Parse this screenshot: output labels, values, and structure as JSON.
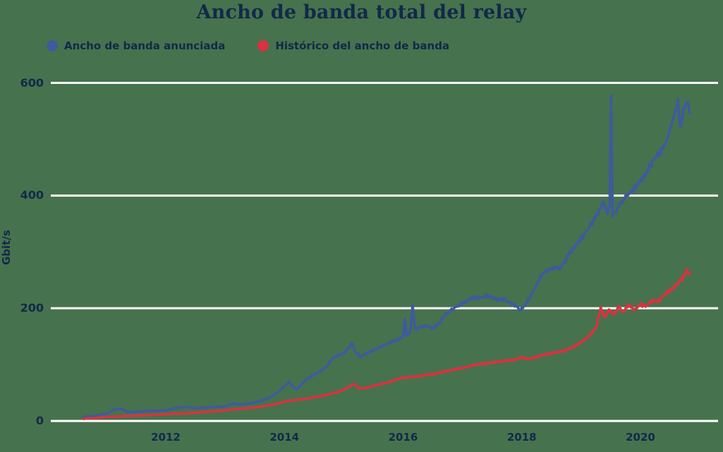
{
  "title": "Ancho de banda total del relay",
  "colors": {
    "background": "#47724E",
    "grid": "#FFFFFF",
    "text": "#12294A",
    "advertised": "#3E5B9C",
    "history": "#D63440"
  },
  "legend": {
    "items": [
      {
        "label": "Ancho de banda anunciada",
        "color": "#3E5B9C"
      },
      {
        "label": "Histórico del ancho de banda",
        "color": "#D63440"
      }
    ]
  },
  "y_axis": {
    "label": "Gbit/s",
    "ticks": [
      "0",
      "200",
      "400",
      "600"
    ],
    "tick_values": [
      0,
      200,
      400,
      600
    ]
  },
  "x_axis": {
    "ticks": [
      "2012",
      "2014",
      "2016",
      "2018",
      "2020"
    ],
    "tick_values": [
      2012,
      2014,
      2016,
      2018,
      2020
    ]
  },
  "chart_data": {
    "type": "line",
    "title": "Ancho de banda total del relay",
    "xlabel": "",
    "ylabel": "Gbit/s",
    "x_range": [
      2010.62,
      2020.85
    ],
    "ylim": [
      0,
      600
    ],
    "grid": "horizontal",
    "legend_position": "top-left",
    "series": [
      {
        "name": "Ancho de banda anunciada",
        "color": "#3E5B9C",
        "points": [
          [
            2010.62,
            7
          ],
          [
            2010.8,
            9
          ],
          [
            2011.0,
            13
          ],
          [
            2011.15,
            21
          ],
          [
            2011.25,
            22
          ],
          [
            2011.35,
            16
          ],
          [
            2011.5,
            16
          ],
          [
            2011.7,
            18
          ],
          [
            2011.85,
            18
          ],
          [
            2012.0,
            19
          ],
          [
            2012.2,
            23
          ],
          [
            2012.35,
            25
          ],
          [
            2012.5,
            23
          ],
          [
            2012.7,
            24
          ],
          [
            2012.85,
            25
          ],
          [
            2013.0,
            26
          ],
          [
            2013.15,
            31
          ],
          [
            2013.25,
            29
          ],
          [
            2013.4,
            31
          ],
          [
            2013.5,
            33
          ],
          [
            2013.65,
            37
          ],
          [
            2013.8,
            44
          ],
          [
            2013.9,
            52
          ],
          [
            2014.0,
            62
          ],
          [
            2014.07,
            70
          ],
          [
            2014.15,
            60
          ],
          [
            2014.22,
            57
          ],
          [
            2014.35,
            72
          ],
          [
            2014.45,
            79
          ],
          [
            2014.6,
            88
          ],
          [
            2014.7,
            95
          ],
          [
            2014.8,
            110
          ],
          [
            2014.9,
            116
          ],
          [
            2015.0,
            120
          ],
          [
            2015.1,
            132
          ],
          [
            2015.14,
            138
          ],
          [
            2015.2,
            122
          ],
          [
            2015.28,
            114
          ],
          [
            2015.35,
            118
          ],
          [
            2015.45,
            123
          ],
          [
            2015.55,
            128
          ],
          [
            2015.65,
            133
          ],
          [
            2015.75,
            138
          ],
          [
            2015.85,
            142
          ],
          [
            2015.95,
            146
          ],
          [
            2016.0,
            150
          ],
          [
            2016.03,
            181
          ],
          [
            2016.06,
            152
          ],
          [
            2016.12,
            158
          ],
          [
            2016.16,
            206
          ],
          [
            2016.2,
            162
          ],
          [
            2016.3,
            167
          ],
          [
            2016.4,
            169
          ],
          [
            2016.5,
            164
          ],
          [
            2016.6,
            172
          ],
          [
            2016.7,
            188
          ],
          [
            2016.8,
            196
          ],
          [
            2016.9,
            203
          ],
          [
            2017.0,
            209
          ],
          [
            2017.1,
            214
          ],
          [
            2017.2,
            220
          ],
          [
            2017.3,
            218
          ],
          [
            2017.4,
            222
          ],
          [
            2017.5,
            219
          ],
          [
            2017.6,
            215
          ],
          [
            2017.7,
            217
          ],
          [
            2017.8,
            210
          ],
          [
            2017.9,
            204
          ],
          [
            2017.97,
            196
          ],
          [
            2018.05,
            205
          ],
          [
            2018.15,
            222
          ],
          [
            2018.25,
            242
          ],
          [
            2018.35,
            262
          ],
          [
            2018.45,
            268
          ],
          [
            2018.55,
            272
          ],
          [
            2018.62,
            270
          ],
          [
            2018.7,
            278
          ],
          [
            2018.8,
            298
          ],
          [
            2018.9,
            310
          ],
          [
            2019.0,
            324
          ],
          [
            2019.1,
            338
          ],
          [
            2019.2,
            355
          ],
          [
            2019.3,
            372
          ],
          [
            2019.37,
            386
          ],
          [
            2019.44,
            368
          ],
          [
            2019.48,
            378
          ],
          [
            2019.505,
            575
          ],
          [
            2019.53,
            362
          ],
          [
            2019.6,
            372
          ],
          [
            2019.67,
            386
          ],
          [
            2019.75,
            398
          ],
          [
            2019.85,
            408
          ],
          [
            2019.95,
            420
          ],
          [
            2020.05,
            432
          ],
          [
            2020.15,
            450
          ],
          [
            2020.25,
            468
          ],
          [
            2020.35,
            480
          ],
          [
            2020.45,
            498
          ],
          [
            2020.52,
            522
          ],
          [
            2020.58,
            548
          ],
          [
            2020.63,
            566
          ],
          [
            2020.68,
            518
          ],
          [
            2020.72,
            548
          ],
          [
            2020.76,
            558
          ],
          [
            2020.8,
            562
          ],
          [
            2020.83,
            545
          ]
        ]
      },
      {
        "name": "Histórico del ancho de banda",
        "color": "#D63440",
        "points": [
          [
            2010.62,
            4
          ],
          [
            2010.8,
            5
          ],
          [
            2011.0,
            7
          ],
          [
            2011.2,
            8
          ],
          [
            2011.4,
            9
          ],
          [
            2011.6,
            10
          ],
          [
            2011.8,
            11
          ],
          [
            2012.0,
            12
          ],
          [
            2012.2,
            13
          ],
          [
            2012.4,
            14
          ],
          [
            2012.6,
            16
          ],
          [
            2012.8,
            17
          ],
          [
            2013.0,
            19
          ],
          [
            2013.2,
            21
          ],
          [
            2013.4,
            23
          ],
          [
            2013.5,
            24
          ],
          [
            2013.7,
            27
          ],
          [
            2013.85,
            30
          ],
          [
            2014.0,
            34
          ],
          [
            2014.1,
            36
          ],
          [
            2014.25,
            38
          ],
          [
            2014.4,
            40
          ],
          [
            2014.55,
            43
          ],
          [
            2014.7,
            46
          ],
          [
            2014.85,
            50
          ],
          [
            2015.0,
            55
          ],
          [
            2015.1,
            62
          ],
          [
            2015.17,
            66
          ],
          [
            2015.25,
            58
          ],
          [
            2015.35,
            58
          ],
          [
            2015.5,
            62
          ],
          [
            2015.65,
            66
          ],
          [
            2015.8,
            70
          ],
          [
            2015.95,
            76
          ],
          [
            2016.1,
            78
          ],
          [
            2016.25,
            79
          ],
          [
            2016.4,
            82
          ],
          [
            2016.55,
            84
          ],
          [
            2016.7,
            88
          ],
          [
            2016.85,
            91
          ],
          [
            2017.0,
            94
          ],
          [
            2017.15,
            98
          ],
          [
            2017.3,
            101
          ],
          [
            2017.45,
            103
          ],
          [
            2017.6,
            105
          ],
          [
            2017.75,
            107
          ],
          [
            2017.9,
            109
          ],
          [
            2018.0,
            113
          ],
          [
            2018.1,
            110
          ],
          [
            2018.2,
            112
          ],
          [
            2018.35,
            117
          ],
          [
            2018.5,
            120
          ],
          [
            2018.65,
            123
          ],
          [
            2018.8,
            128
          ],
          [
            2018.95,
            136
          ],
          [
            2019.1,
            148
          ],
          [
            2019.25,
            165
          ],
          [
            2019.33,
            200
          ],
          [
            2019.4,
            182
          ],
          [
            2019.47,
            198
          ],
          [
            2019.55,
            188
          ],
          [
            2019.63,
            203
          ],
          [
            2019.7,
            192
          ],
          [
            2019.8,
            206
          ],
          [
            2019.9,
            197
          ],
          [
            2020.0,
            207
          ],
          [
            2020.1,
            204
          ],
          [
            2020.2,
            214
          ],
          [
            2020.3,
            212
          ],
          [
            2020.4,
            224
          ],
          [
            2020.5,
            232
          ],
          [
            2020.6,
            241
          ],
          [
            2020.7,
            253
          ],
          [
            2020.78,
            266
          ],
          [
            2020.83,
            263
          ]
        ]
      }
    ]
  }
}
